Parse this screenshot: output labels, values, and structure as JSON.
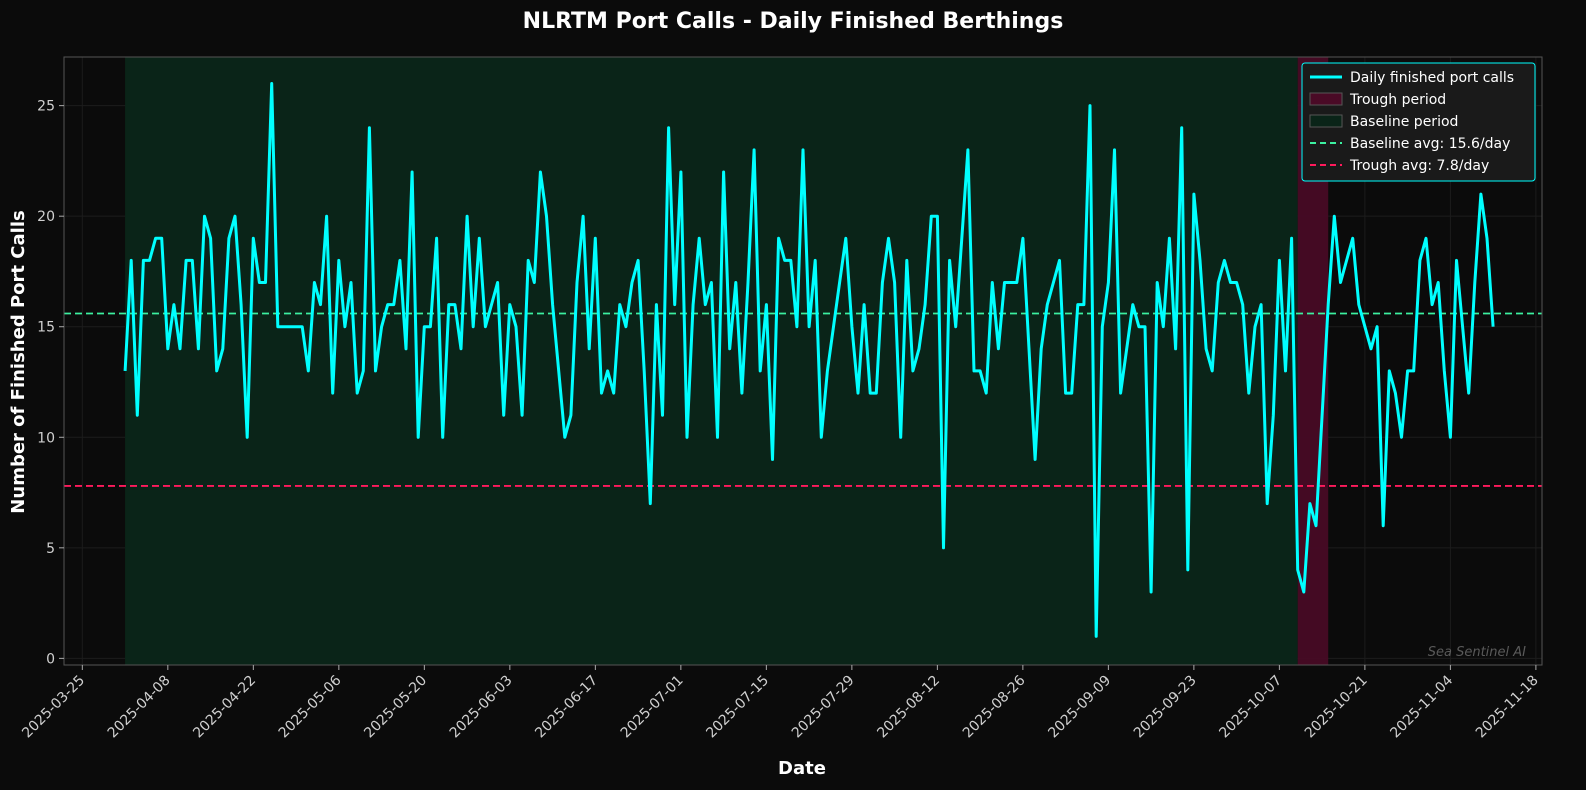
{
  "chart_data": {
    "type": "line",
    "title": "NLRTM Port Calls - Daily Finished Berthings",
    "xlabel": "Date",
    "ylabel": "Number of Finished Port Calls",
    "watermark": "Sea Sentinel AI",
    "x_start": "2025-04-01",
    "x_range": [
      "2025-03-22",
      "2025-11-19"
    ],
    "ylim": [
      -0.3,
      27.2
    ],
    "x_ticks": [
      "2025-03-25",
      "2025-04-08",
      "2025-04-22",
      "2025-05-06",
      "2025-05-20",
      "2025-06-03",
      "2025-06-17",
      "2025-07-01",
      "2025-07-15",
      "2025-07-29",
      "2025-08-12",
      "2025-08-26",
      "2025-09-09",
      "2025-09-23",
      "2025-10-07",
      "2025-10-21",
      "2025-11-04",
      "2025-11-18"
    ],
    "y_ticks": [
      0,
      5,
      10,
      15,
      20,
      25
    ],
    "grid": true,
    "legend_position": "top-right",
    "colors": {
      "background": "#0b0b0b",
      "plot_background": "#0b0b0b",
      "series": "#00ffff",
      "baseline_fill": "#0a2418",
      "trough_fill": "#4a0a26",
      "baseline_line": "#3cf0a0",
      "trough_line": "#ff1a5c",
      "axes": "#555555"
    },
    "baseline_period": [
      "2025-04-01",
      "2025-10-10"
    ],
    "trough_period": [
      "2025-10-10",
      "2025-10-15"
    ],
    "baseline_avg": 15.6,
    "trough_avg": 7.8,
    "legend": [
      {
        "label": "Daily finished port calls",
        "kind": "line",
        "color": "#00ffff"
      },
      {
        "label": "Trough period",
        "kind": "patch",
        "color": "#4a0a26"
      },
      {
        "label": "Baseline period",
        "kind": "patch",
        "color": "#0a2418"
      },
      {
        "label": "Baseline avg: 15.6/day",
        "kind": "dashed",
        "color": "#3cf0a0"
      },
      {
        "label": "Trough avg: 7.8/day",
        "kind": "dashed",
        "color": "#ff1a5c"
      }
    ],
    "series": [
      {
        "name": "Daily finished port calls",
        "values": [
          13,
          18,
          11,
          18,
          18,
          19,
          19,
          14,
          16,
          14,
          18,
          18,
          14,
          20,
          19,
          13,
          14,
          19,
          20,
          16,
          10,
          19,
          17,
          17,
          26,
          15,
          15,
          15,
          15,
          15,
          13,
          17,
          16,
          20,
          12,
          18,
          15,
          17,
          12,
          13,
          24,
          13,
          15,
          16,
          16,
          18,
          14,
          22,
          10,
          15,
          15,
          19,
          10,
          16,
          16,
          14,
          20,
          15,
          19,
          15,
          16,
          17,
          11,
          16,
          15,
          11,
          18,
          17,
          22,
          20,
          16,
          13,
          10,
          11,
          17,
          20,
          14,
          19,
          12,
          13,
          12,
          16,
          15,
          17,
          18,
          13,
          7,
          16,
          11,
          24,
          16,
          22,
          10,
          16,
          19,
          16,
          17,
          10,
          22,
          14,
          17,
          12,
          17,
          23,
          13,
          16,
          9,
          19,
          18,
          18,
          15,
          23,
          15,
          18,
          10,
          13,
          15,
          17,
          19,
          15,
          12,
          16,
          12,
          12,
          17,
          19,
          17,
          10,
          18,
          13,
          14,
          16,
          20,
          20,
          5,
          18,
          15,
          19,
          23,
          13,
          13,
          12,
          17,
          14,
          17,
          17,
          17,
          19,
          14,
          9,
          14,
          16,
          17,
          18,
          12,
          12,
          16,
          16,
          25,
          1,
          15,
          17,
          23,
          12,
          14,
          16,
          15,
          15,
          3,
          17,
          15,
          19,
          14,
          24,
          4,
          21,
          18,
          14,
          13,
          17,
          18,
          17,
          17,
          16,
          12,
          15,
          16,
          7,
          11,
          18,
          13,
          19,
          4,
          3,
          7,
          6,
          11,
          16,
          20,
          17,
          18,
          19,
          16,
          15,
          14,
          15,
          6,
          13,
          12,
          10,
          13,
          13,
          18,
          19,
          16,
          17,
          13,
          10,
          18,
          15,
          12,
          17,
          21,
          19,
          15
        ]
      }
    ]
  }
}
